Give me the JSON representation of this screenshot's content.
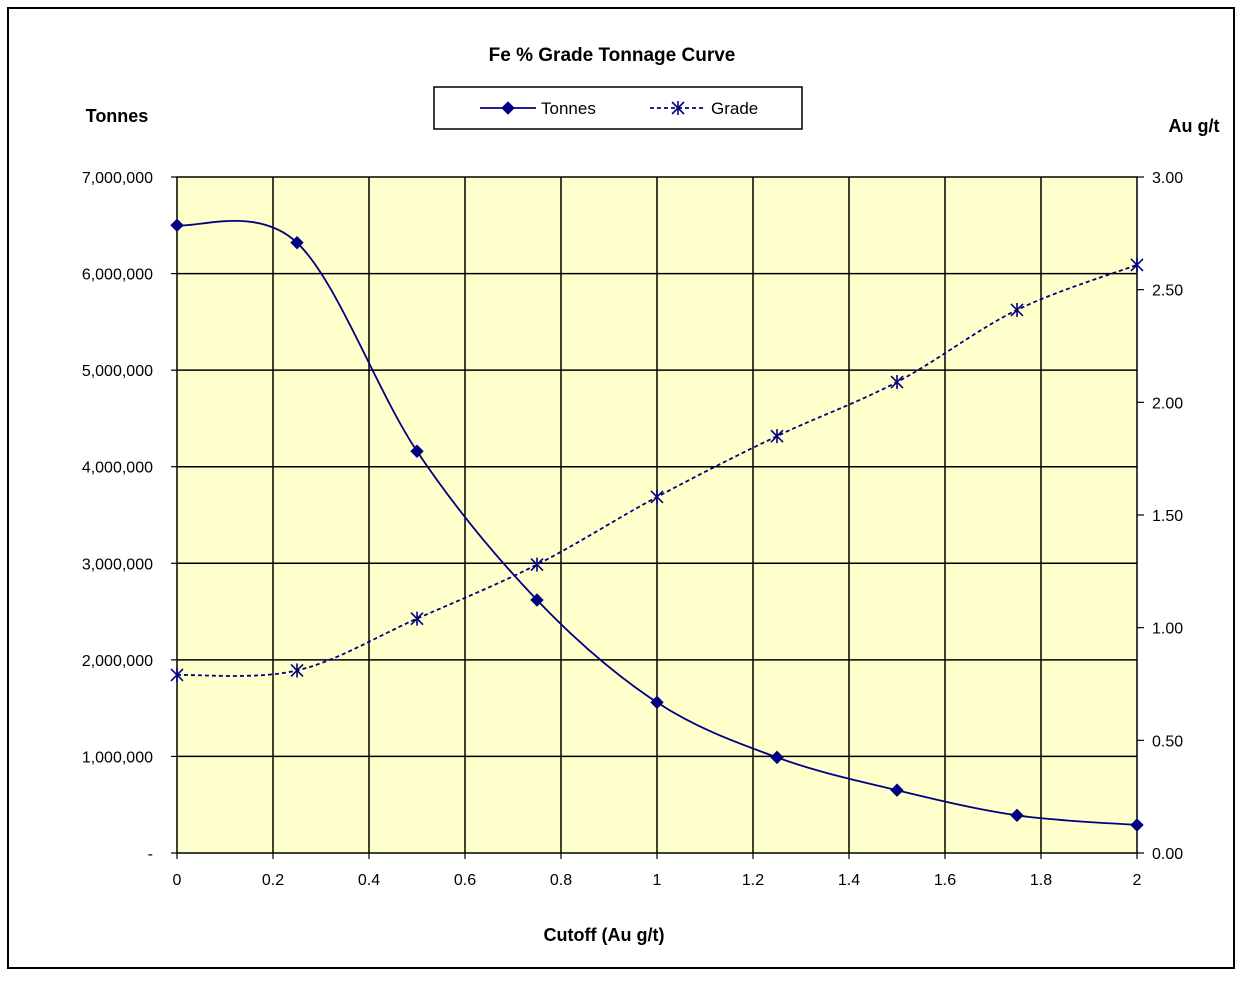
{
  "chart_data": {
    "type": "line",
    "title": "Fe % Grade Tonnage  Curve",
    "xlabel": "Cutoff (Au  g/t)",
    "ylabel_left": "Tonnes",
    "ylabel_right": "Au  g/t",
    "xlim": [
      0,
      2
    ],
    "ylim_left": [
      0,
      7000000
    ],
    "ylim_right": [
      0,
      3
    ],
    "x_ticks": [
      "0",
      "0.2",
      "0.4",
      "0.6",
      "0.8",
      "1",
      "1.2",
      "1.4",
      "1.6",
      "1.8",
      "2"
    ],
    "y_left_ticks": [
      "-",
      "1,000,000",
      "2,000,000",
      "3,000,000",
      "4,000,000",
      "5,000,000",
      "6,000,000",
      "7,000,000"
    ],
    "y_right_ticks": [
      "0.00",
      "0.50",
      "1.00",
      "1.50",
      "2.00",
      "2.50",
      "3.00"
    ],
    "grid": true,
    "legend_position": "top-center",
    "plot_background": "#ffffcc",
    "series": [
      {
        "name": "Tonnes",
        "axis": "left",
        "color": "#000080",
        "style": "solid",
        "marker": "diamond",
        "x": [
          0,
          0.25,
          0.5,
          0.75,
          1.0,
          1.25,
          1.5,
          1.75,
          2.0
        ],
        "values": [
          6500000,
          6320000,
          4160000,
          2620000,
          1560000,
          990000,
          650000,
          390000,
          290000
        ]
      },
      {
        "name": "Grade",
        "axis": "right",
        "color": "#000080",
        "style": "dashed",
        "marker": "asterisk",
        "x": [
          0,
          0.25,
          0.5,
          0.75,
          1.0,
          1.25,
          1.5,
          1.75,
          2.0
        ],
        "values": [
          0.79,
          0.81,
          1.04,
          1.28,
          1.58,
          1.85,
          2.09,
          2.41,
          2.61
        ]
      }
    ]
  }
}
